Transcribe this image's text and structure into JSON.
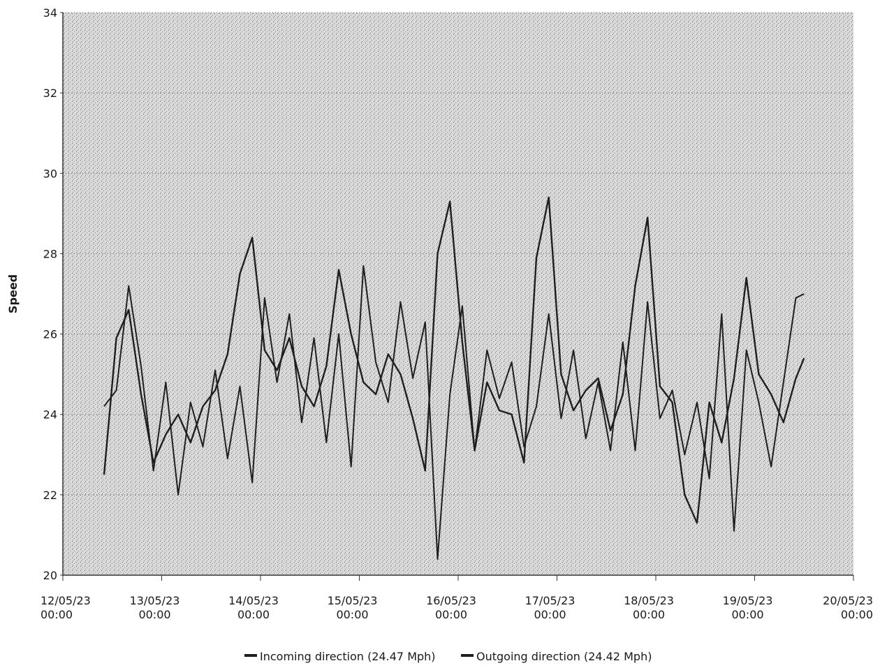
{
  "chart_data": {
    "type": "line",
    "title": "",
    "xlabel": "",
    "ylabel": "Speed",
    "ylim": [
      20,
      34
    ],
    "yticks": [
      20,
      22,
      24,
      26,
      28,
      30,
      32,
      34
    ],
    "xlim": [
      "2023-05-12 00:00",
      "2023-05-20 00:00"
    ],
    "xticks": [
      {
        "date": "12/05/23",
        "time": "00:00"
      },
      {
        "date": "13/05/23",
        "time": "00:00"
      },
      {
        "date": "14/05/23",
        "time": "00:00"
      },
      {
        "date": "15/05/23",
        "time": "00:00"
      },
      {
        "date": "16/05/23",
        "time": "00:00"
      },
      {
        "date": "17/05/23",
        "time": "00:00"
      },
      {
        "date": "18/05/23",
        "time": "00:00"
      },
      {
        "date": "19/05/23",
        "time": "00:00"
      },
      {
        "date": "20/05/23",
        "time": "00:00"
      }
    ],
    "grid": "horizontal-dotted",
    "legend_position": "bottom-center",
    "colors": {
      "line": "#1f1f1f",
      "grid": "#555555",
      "plot_bg": "#d4d4d4"
    },
    "series": [
      {
        "name": "Incoming direction (24.47 Mph)",
        "x": [
          "2023-05-12 10:00",
          "2023-05-12 13:00",
          "2023-05-12 16:00",
          "2023-05-12 19:00",
          "2023-05-12 22:00",
          "2023-05-13 01:00",
          "2023-05-13 04:00",
          "2023-05-13 07:00",
          "2023-05-13 10:00",
          "2023-05-13 13:00",
          "2023-05-13 16:00",
          "2023-05-13 19:00",
          "2023-05-13 22:00",
          "2023-05-14 01:00",
          "2023-05-14 04:00",
          "2023-05-14 07:00",
          "2023-05-14 10:00",
          "2023-05-14 13:00",
          "2023-05-14 16:00",
          "2023-05-14 19:00",
          "2023-05-14 22:00",
          "2023-05-15 01:00",
          "2023-05-15 04:00",
          "2023-05-15 07:00",
          "2023-05-15 10:00",
          "2023-05-15 13:00",
          "2023-05-15 16:00",
          "2023-05-15 19:00",
          "2023-05-15 22:00",
          "2023-05-16 01:00",
          "2023-05-16 04:00",
          "2023-05-16 07:00",
          "2023-05-16 10:00",
          "2023-05-16 13:00",
          "2023-05-16 16:00",
          "2023-05-16 19:00",
          "2023-05-16 22:00",
          "2023-05-17 01:00",
          "2023-05-17 04:00",
          "2023-05-17 07:00",
          "2023-05-17 10:00",
          "2023-05-17 13:00",
          "2023-05-17 16:00",
          "2023-05-17 19:00",
          "2023-05-17 22:00",
          "2023-05-18 01:00",
          "2023-05-18 04:00",
          "2023-05-18 07:00",
          "2023-05-18 10:00",
          "2023-05-18 13:00",
          "2023-05-18 16:00",
          "2023-05-18 19:00",
          "2023-05-18 22:00",
          "2023-05-19 01:00",
          "2023-05-19 04:00",
          "2023-05-19 07:00",
          "2023-05-19 10:00",
          "2023-05-19 12:00"
        ],
        "values": [
          22.5,
          25.9,
          26.6,
          24.5,
          22.8,
          23.5,
          24.0,
          23.3,
          24.2,
          24.6,
          25.5,
          27.5,
          28.4,
          25.6,
          25.1,
          25.9,
          24.7,
          24.2,
          25.2,
          27.6,
          26.0,
          24.8,
          24.5,
          25.5,
          25.0,
          23.9,
          22.6,
          28.0,
          29.3,
          25.8,
          23.1,
          24.8,
          24.1,
          24.0,
          22.8,
          27.9,
          29.4,
          25.0,
          24.1,
          24.6,
          24.9,
          23.6,
          24.5,
          27.2,
          28.9,
          24.7,
          24.3,
          22.0,
          21.3,
          24.3,
          23.3,
          24.9,
          27.4,
          25.0,
          24.5,
          23.8,
          24.9,
          25.4
        ]
      },
      {
        "name": "Outgoing direction (24.42 Mph)",
        "x": [
          "2023-05-12 10:00",
          "2023-05-12 13:00",
          "2023-05-12 16:00",
          "2023-05-12 19:00",
          "2023-05-12 22:00",
          "2023-05-13 01:00",
          "2023-05-13 04:00",
          "2023-05-13 07:00",
          "2023-05-13 10:00",
          "2023-05-13 13:00",
          "2023-05-13 16:00",
          "2023-05-13 19:00",
          "2023-05-13 22:00",
          "2023-05-14 01:00",
          "2023-05-14 04:00",
          "2023-05-14 07:00",
          "2023-05-14 10:00",
          "2023-05-14 13:00",
          "2023-05-14 16:00",
          "2023-05-14 19:00",
          "2023-05-14 22:00",
          "2023-05-15 01:00",
          "2023-05-15 04:00",
          "2023-05-15 07:00",
          "2023-05-15 10:00",
          "2023-05-15 13:00",
          "2023-05-15 16:00",
          "2023-05-15 19:00",
          "2023-05-15 22:00",
          "2023-05-16 01:00",
          "2023-05-16 04:00",
          "2023-05-16 07:00",
          "2023-05-16 10:00",
          "2023-05-16 13:00",
          "2023-05-16 16:00",
          "2023-05-16 19:00",
          "2023-05-16 22:00",
          "2023-05-17 01:00",
          "2023-05-17 04:00",
          "2023-05-17 07:00",
          "2023-05-17 10:00",
          "2023-05-17 13:00",
          "2023-05-17 16:00",
          "2023-05-17 19:00",
          "2023-05-17 22:00",
          "2023-05-18 01:00",
          "2023-05-18 04:00",
          "2023-05-18 07:00",
          "2023-05-18 10:00",
          "2023-05-18 13:00",
          "2023-05-18 16:00",
          "2023-05-18 19:00",
          "2023-05-18 22:00",
          "2023-05-19 01:00",
          "2023-05-19 04:00",
          "2023-05-19 07:00",
          "2023-05-19 10:00",
          "2023-05-19 12:00"
        ],
        "values": [
          24.2,
          24.6,
          27.2,
          25.2,
          22.6,
          24.8,
          22.0,
          24.3,
          23.2,
          25.1,
          22.9,
          24.7,
          22.3,
          26.9,
          24.8,
          26.5,
          23.8,
          25.9,
          23.3,
          26.0,
          22.7,
          27.7,
          25.3,
          24.3,
          26.8,
          24.9,
          26.3,
          20.4,
          24.5,
          26.7,
          23.1,
          25.6,
          24.4,
          25.3,
          23.2,
          24.2,
          26.5,
          23.9,
          25.6,
          23.4,
          24.8,
          23.1,
          25.8,
          23.1,
          26.8,
          23.9,
          24.6,
          23.0,
          24.3,
          22.4,
          26.5,
          21.1,
          25.6,
          24.3,
          22.7,
          24.8,
          26.9,
          27.0
        ]
      }
    ]
  }
}
